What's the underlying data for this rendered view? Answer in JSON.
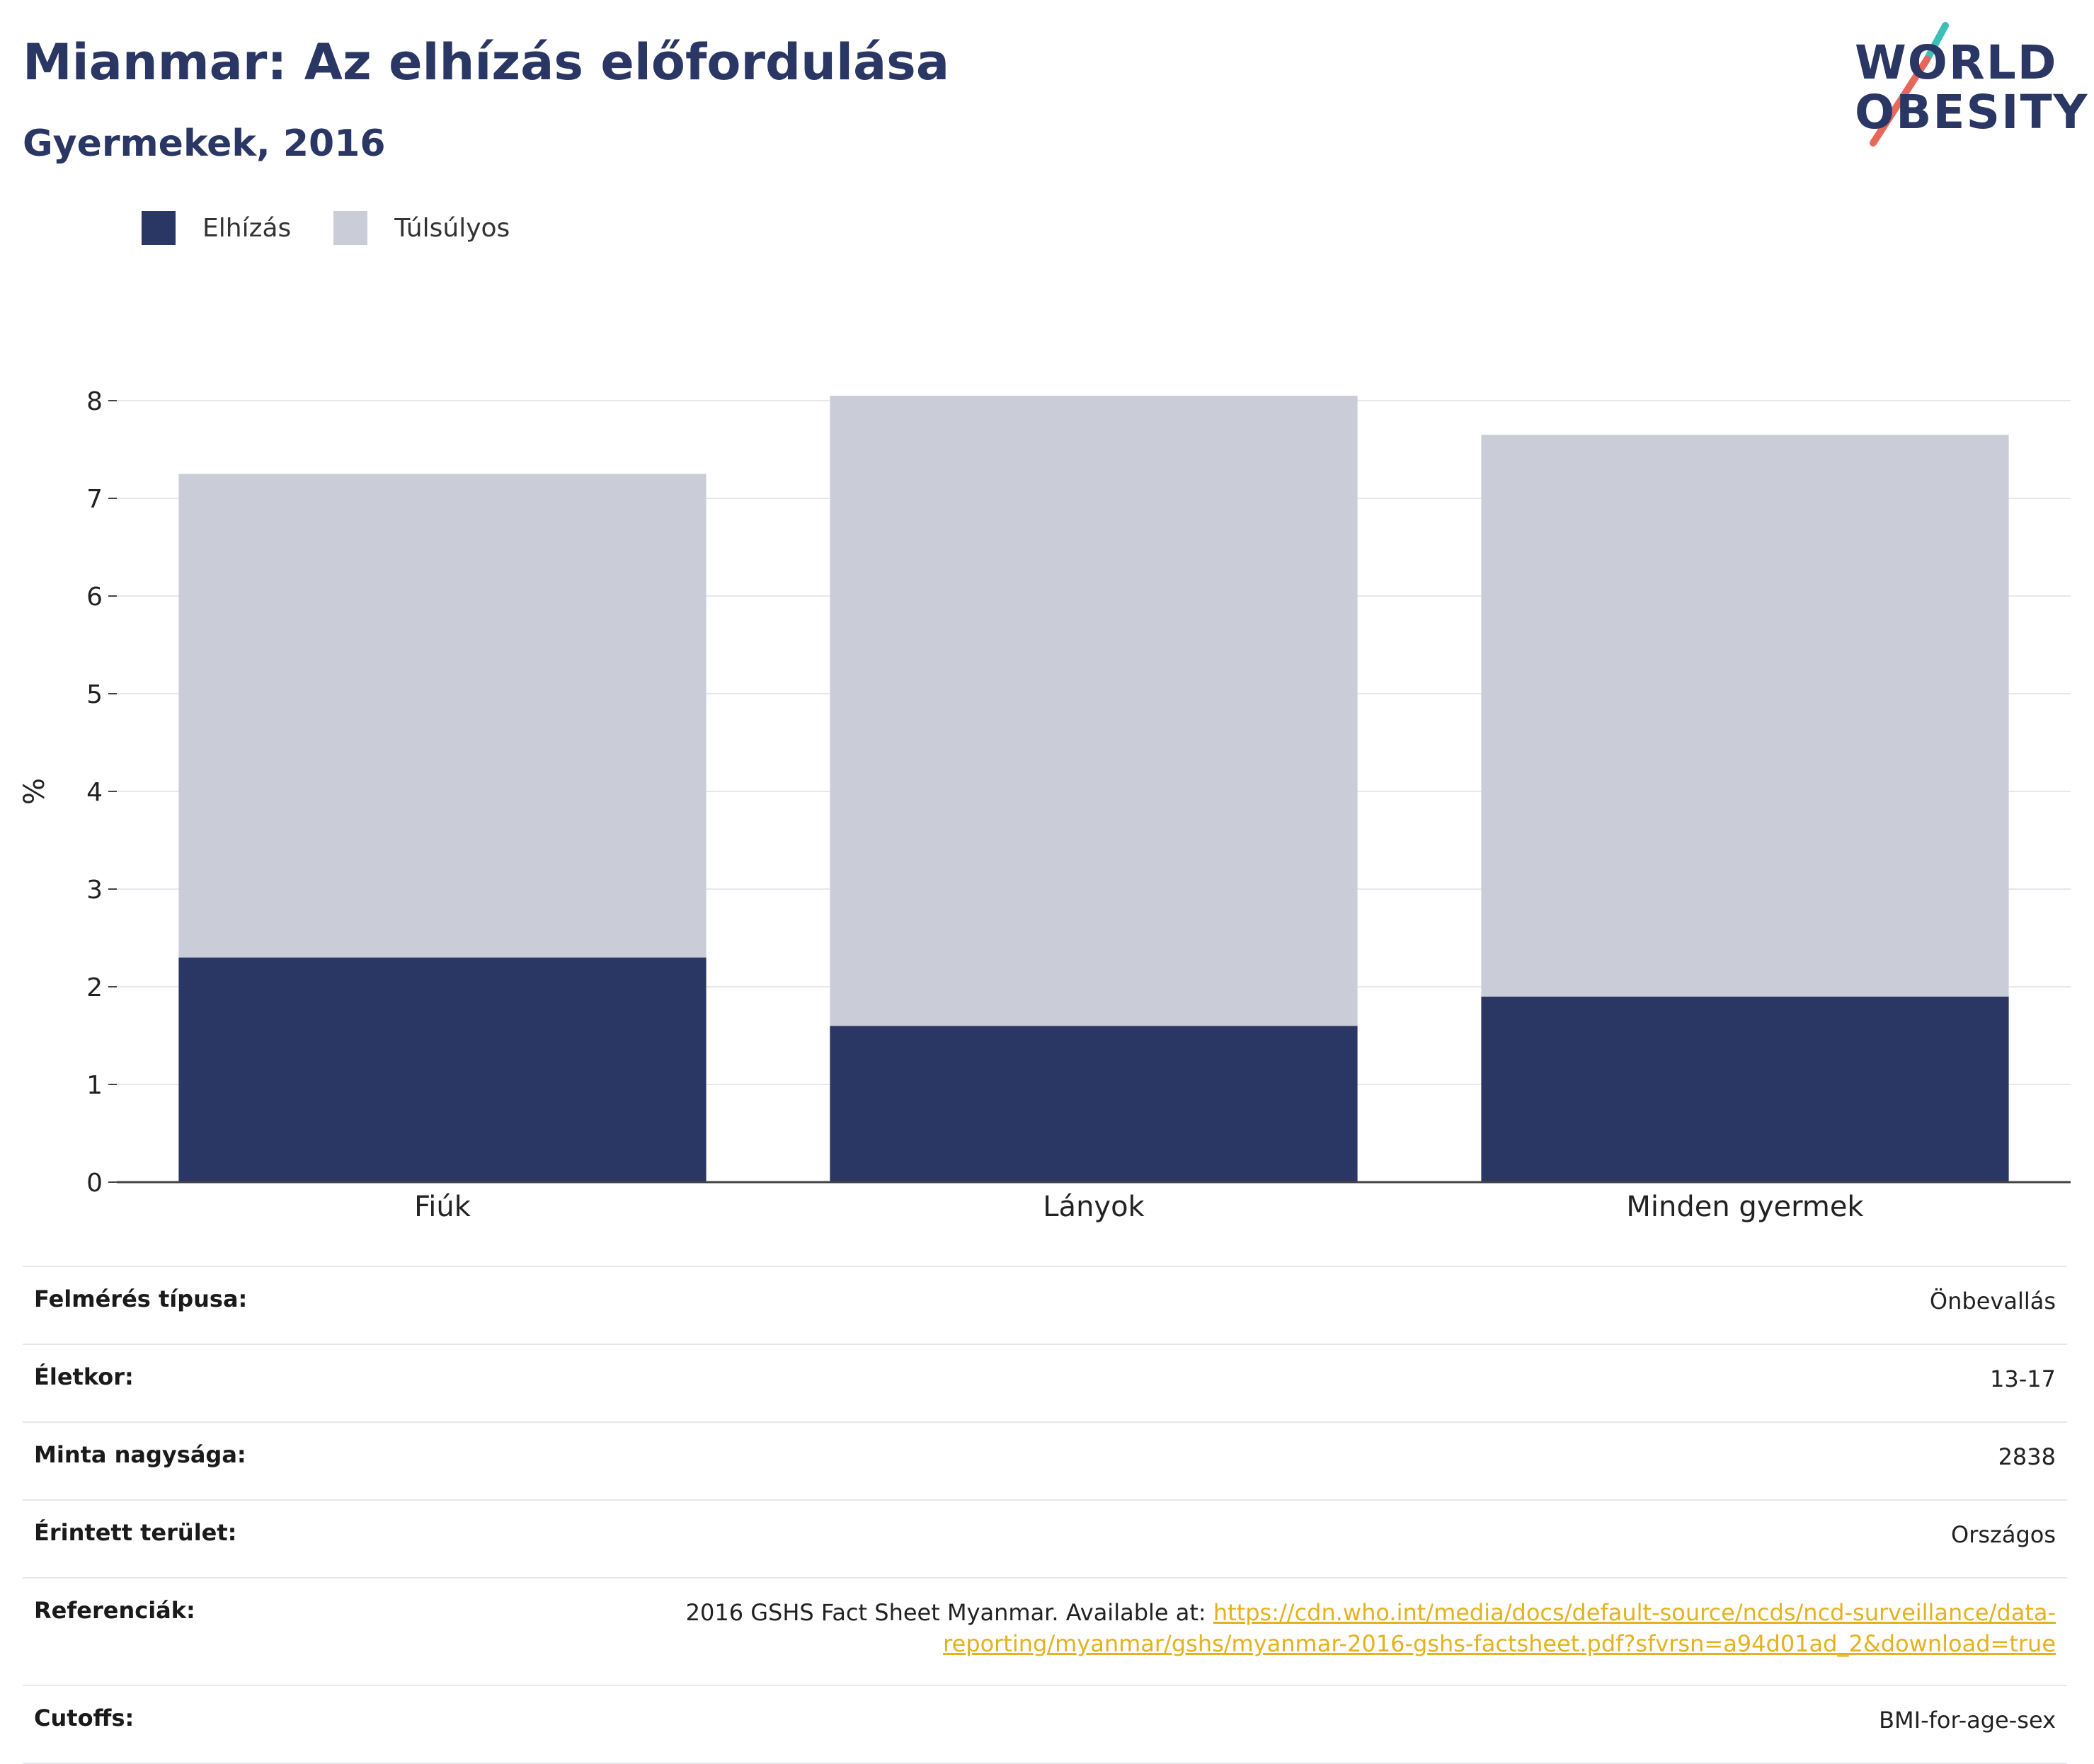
{
  "header": {
    "title": "Mianmar: Az elhízás előfordulása",
    "subtitle": "Gyermekek, 2016"
  },
  "logo": {
    "line1": "WORLD",
    "line2": "OBESITY",
    "colors": {
      "text": "#2a3663",
      "slash_top": "#3bbfb8",
      "slash_bottom": "#e7675a"
    }
  },
  "legend": [
    {
      "label": "Elhízás",
      "color": "#2a3663"
    },
    {
      "label": "Túlsúlyos",
      "color": "#cacdd8"
    }
  ],
  "chart_data": {
    "type": "bar",
    "stacked": true,
    "categories": [
      "Fiúk",
      "Lányok",
      "Minden gyermek"
    ],
    "series": [
      {
        "name": "Elhízás",
        "values": [
          2.3,
          1.6,
          1.9
        ],
        "color": "#2a3663"
      },
      {
        "name": "Túlsúlyos",
        "values": [
          4.95,
          6.45,
          5.75
        ],
        "color": "#cacdd8"
      }
    ],
    "ylabel": "%",
    "ylim": [
      0,
      8
    ],
    "yticks": [
      0,
      1,
      2,
      3,
      4,
      5,
      6,
      7,
      8
    ],
    "grid": true,
    "legend_position": "top-left"
  },
  "info": [
    {
      "key": "Felmérés típusa:",
      "value": "Önbevallás"
    },
    {
      "key": "Életkor:",
      "value": "13-17"
    },
    {
      "key": "Minta nagysága:",
      "value": "2838"
    },
    {
      "key": "Érintett terület:",
      "value": "Országos"
    },
    {
      "key": "Referenciák:",
      "value_prefix": "2016 GSHS Fact Sheet Myanmar. Available at:",
      "link_line1": "https://cdn.who.int/media/docs/default-source/ncds/ncd-surveillance/data-",
      "link_line2": "reporting/myanmar/gshs/myanmar-2016-gshs-factsheet.pdf?sfvrsn=a94d01ad_2&download=true"
    },
    {
      "key": "Cutoffs:",
      "value": "BMI-for-age-sex"
    }
  ]
}
